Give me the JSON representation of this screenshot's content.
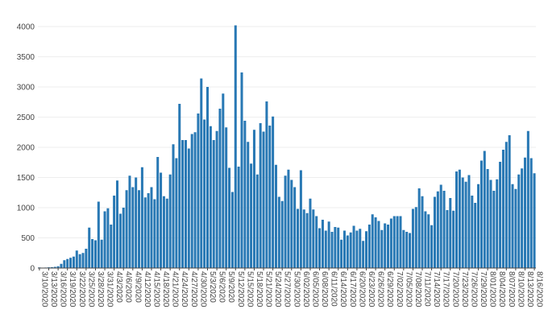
{
  "chart_data": {
    "type": "bar",
    "title": "",
    "xlabel": "",
    "ylabel": "",
    "ylim": [
      0,
      4000
    ],
    "yticks": [
      0,
      500,
      1000,
      1500,
      2000,
      2500,
      3000,
      3500,
      4000
    ],
    "grid": "horizontal",
    "legend": "none",
    "colors": {
      "bar": "#2878b4",
      "grid": "#eeeeee",
      "text": "#444444"
    },
    "start_date": "2020-03-10",
    "x_tick_labels": [
      "3/10/2020",
      "3/13/2020",
      "3/16/2020",
      "3/19/2020",
      "3/22/2020",
      "3/25/2020",
      "3/28/2020",
      "3/31/2020",
      "4/3/2020",
      "4/6/2020",
      "4/9/2020",
      "4/12/2020",
      "4/15/2020",
      "4/18/2020",
      "4/21/2020",
      "4/24/2020",
      "4/27/2020",
      "4/30/2020",
      "5/3/2020",
      "5/6/2020",
      "5/9/2020",
      "5/12/2020",
      "5/15/2020",
      "5/18/2020",
      "5/21/2020",
      "5/24/2020",
      "5/27/2020",
      "5/30/2020",
      "6/02/2020",
      "6/05/2020",
      "6/08/2020",
      "6/11/2020",
      "6/14/2020",
      "6/17/2020",
      "6/20/2020",
      "6/23/2020",
      "6/26/2020",
      "6/29/2020",
      "7/02/2020",
      "7/05/2020",
      "7/08/2020",
      "7/11/2020",
      "7/14/2020",
      "7/17/2020",
      "7/20/2020",
      "7/23/2020",
      "7/26/2020",
      "7/29/2020",
      "8/01/2020",
      "8/04/2020",
      "8/07/2020",
      "8/10/2020",
      "8/13/2020",
      "8/16/2020"
    ],
    "values": [
      10,
      5,
      8,
      12,
      15,
      20,
      30,
      70,
      130,
      150,
      170,
      190,
      290,
      230,
      250,
      320,
      670,
      480,
      460,
      1100,
      470,
      940,
      990,
      720,
      1200,
      1450,
      900,
      1000,
      1290,
      1530,
      1340,
      1500,
      1290,
      1670,
      1170,
      1240,
      1340,
      1140,
      1840,
      1580,
      1190,
      1150,
      1550,
      2050,
      1820,
      2720,
      2120,
      2120,
      1980,
      2220,
      2250,
      2560,
      3140,
      2460,
      3000,
      2350,
      2120,
      2270,
      2640,
      2890,
      2330,
      1660,
      1260,
      4020,
      1680,
      3240,
      2440,
      2090,
      1730,
      2290,
      1550,
      2400,
      2260,
      2760,
      2360,
      2510,
      1710,
      1180,
      1110,
      1530,
      1630,
      1460,
      1340,
      980,
      1620,
      970,
      910,
      1150,
      970,
      860,
      660,
      800,
      620,
      770,
      600,
      680,
      670,
      470,
      620,
      540,
      590,
      700,
      620,
      650,
      450,
      610,
      720,
      890,
      840,
      780,
      630,
      740,
      720,
      820,
      860,
      860,
      860,
      630,
      600,
      580,
      980,
      1010,
      1320,
      1190,
      940,
      890,
      710,
      1180,
      1270,
      1380,
      1280,
      960,
      1160,
      950,
      1600,
      1630,
      1500,
      1430,
      1540,
      1200,
      1080,
      1390,
      1780,
      1940,
      1640,
      1460,
      1280,
      1470,
      1760,
      1960,
      2090,
      2200,
      1390,
      1310,
      1550,
      1650,
      1830,
      2270,
      1820,
      1570
    ]
  }
}
